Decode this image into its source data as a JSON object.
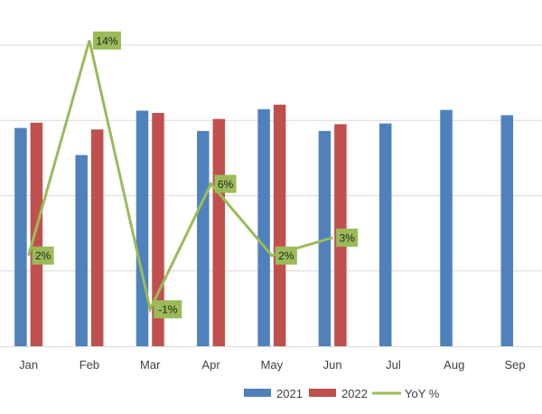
{
  "chart_data": {
    "type": "bar",
    "title": "",
    "xlabel": "",
    "ylabel": "",
    "categories": [
      "Jan",
      "Feb",
      "Mar",
      "Apr",
      "May",
      "Jun",
      "Jul",
      "Aug",
      "Sep"
    ],
    "series": [
      {
        "name": "2021",
        "type": "bar",
        "color": "#4F81BD",
        "values": [
          290,
          254,
          313,
          286,
          315,
          286,
          296,
          314,
          307
        ]
      },
      {
        "name": "2022",
        "type": "bar",
        "color": "#C0504D",
        "values": [
          297,
          288,
          310,
          302,
          321,
          295,
          null,
          null,
          null
        ]
      },
      {
        "name": "YoY %",
        "type": "line",
        "axis": "secondary",
        "color": "#9BBB59",
        "values": [
          2,
          14,
          -1,
          6,
          2,
          3,
          null,
          null,
          null
        ],
        "labels": [
          "2%",
          "14%",
          "-1%",
          "6%",
          "2%",
          "3%",
          "",
          "",
          ""
        ]
      }
    ],
    "ylim": [
      0,
      400
    ],
    "y2lim": [
      -2,
      15
    ],
    "grid": true,
    "legend": "bottom"
  }
}
